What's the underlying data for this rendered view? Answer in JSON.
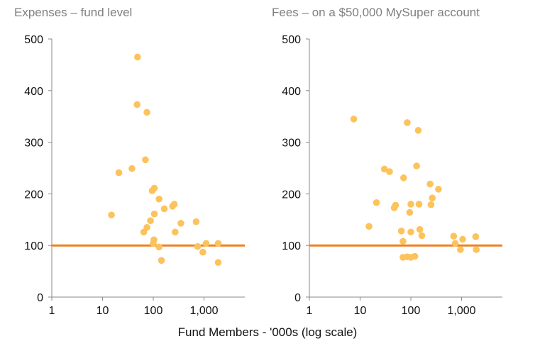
{
  "shared_xlabel": "Fund Members - '000s (log scale)",
  "chart_data": [
    {
      "type": "scatter",
      "title": "Expenses – fund level",
      "xlabel": "Fund Members - '000s (log scale)",
      "ylabel": "",
      "x_scale": "log",
      "xlim": [
        1,
        8000
      ],
      "ylim": [
        0,
        500
      ],
      "x_ticks": [
        1,
        10,
        100,
        1000
      ],
      "x_tick_labels": [
        "1",
        "10",
        "100",
        "1,000"
      ],
      "y_ticks": [
        0,
        100,
        200,
        300,
        400,
        500
      ],
      "y_tick_labels": [
        "0",
        "100",
        "200",
        "300",
        "400",
        "500"
      ],
      "grid": false,
      "reference_line": {
        "y": 100,
        "color": "#f0801e"
      },
      "point_color": "#fcc35c",
      "points": [
        {
          "x": 15,
          "y": 159
        },
        {
          "x": 21,
          "y": 241
        },
        {
          "x": 38,
          "y": 249
        },
        {
          "x": 49,
          "y": 465
        },
        {
          "x": 48,
          "y": 373
        },
        {
          "x": 75,
          "y": 358
        },
        {
          "x": 70,
          "y": 266
        },
        {
          "x": 95,
          "y": 206
        },
        {
          "x": 105,
          "y": 211
        },
        {
          "x": 130,
          "y": 190
        },
        {
          "x": 105,
          "y": 161
        },
        {
          "x": 88,
          "y": 148
        },
        {
          "x": 165,
          "y": 171
        },
        {
          "x": 240,
          "y": 176
        },
        {
          "x": 260,
          "y": 180
        },
        {
          "x": 75,
          "y": 135
        },
        {
          "x": 65,
          "y": 126
        },
        {
          "x": 103,
          "y": 111
        },
        {
          "x": 100,
          "y": 104
        },
        {
          "x": 130,
          "y": 97
        },
        {
          "x": 145,
          "y": 71
        },
        {
          "x": 270,
          "y": 126
        },
        {
          "x": 350,
          "y": 143
        },
        {
          "x": 700,
          "y": 146
        },
        {
          "x": 750,
          "y": 98
        },
        {
          "x": 950,
          "y": 87
        },
        {
          "x": 1100,
          "y": 104
        },
        {
          "x": 1900,
          "y": 104
        },
        {
          "x": 1900,
          "y": 67
        }
      ]
    },
    {
      "type": "scatter",
      "title": "Fees – on a $50,000 MySuper account",
      "xlabel": "Fund Members - '000s (log scale)",
      "ylabel": "",
      "x_scale": "log",
      "xlim": [
        1,
        8000
      ],
      "ylim": [
        0,
        500
      ],
      "x_ticks": [
        1,
        10,
        100,
        1000
      ],
      "x_tick_labels": [
        "1",
        "10",
        "100",
        "1,000"
      ],
      "y_ticks": [
        0,
        100,
        200,
        300,
        400,
        500
      ],
      "y_tick_labels": [
        "0",
        "100",
        "200",
        "300",
        "400",
        "500"
      ],
      "grid": false,
      "reference_line": {
        "y": 100,
        "color": "#f0801e"
      },
      "point_color": "#fcc35c",
      "points": [
        {
          "x": 7.5,
          "y": 345
        },
        {
          "x": 15,
          "y": 137
        },
        {
          "x": 21,
          "y": 183
        },
        {
          "x": 30,
          "y": 248
        },
        {
          "x": 38,
          "y": 243
        },
        {
          "x": 47,
          "y": 173
        },
        {
          "x": 50,
          "y": 178
        },
        {
          "x": 65,
          "y": 128
        },
        {
          "x": 70,
          "y": 108
        },
        {
          "x": 72,
          "y": 231
        },
        {
          "x": 85,
          "y": 338
        },
        {
          "x": 100,
          "y": 180
        },
        {
          "x": 95,
          "y": 164
        },
        {
          "x": 100,
          "y": 126
        },
        {
          "x": 130,
          "y": 254
        },
        {
          "x": 140,
          "y": 323
        },
        {
          "x": 145,
          "y": 180
        },
        {
          "x": 150,
          "y": 131
        },
        {
          "x": 165,
          "y": 119
        },
        {
          "x": 70,
          "y": 77
        },
        {
          "x": 85,
          "y": 78
        },
        {
          "x": 100,
          "y": 77
        },
        {
          "x": 120,
          "y": 79
        },
        {
          "x": 240,
          "y": 219
        },
        {
          "x": 265,
          "y": 192
        },
        {
          "x": 250,
          "y": 179
        },
        {
          "x": 350,
          "y": 209
        },
        {
          "x": 700,
          "y": 118
        },
        {
          "x": 750,
          "y": 104
        },
        {
          "x": 950,
          "y": 92
        },
        {
          "x": 1050,
          "y": 112
        },
        {
          "x": 1900,
          "y": 117
        },
        {
          "x": 1950,
          "y": 92
        }
      ]
    }
  ]
}
